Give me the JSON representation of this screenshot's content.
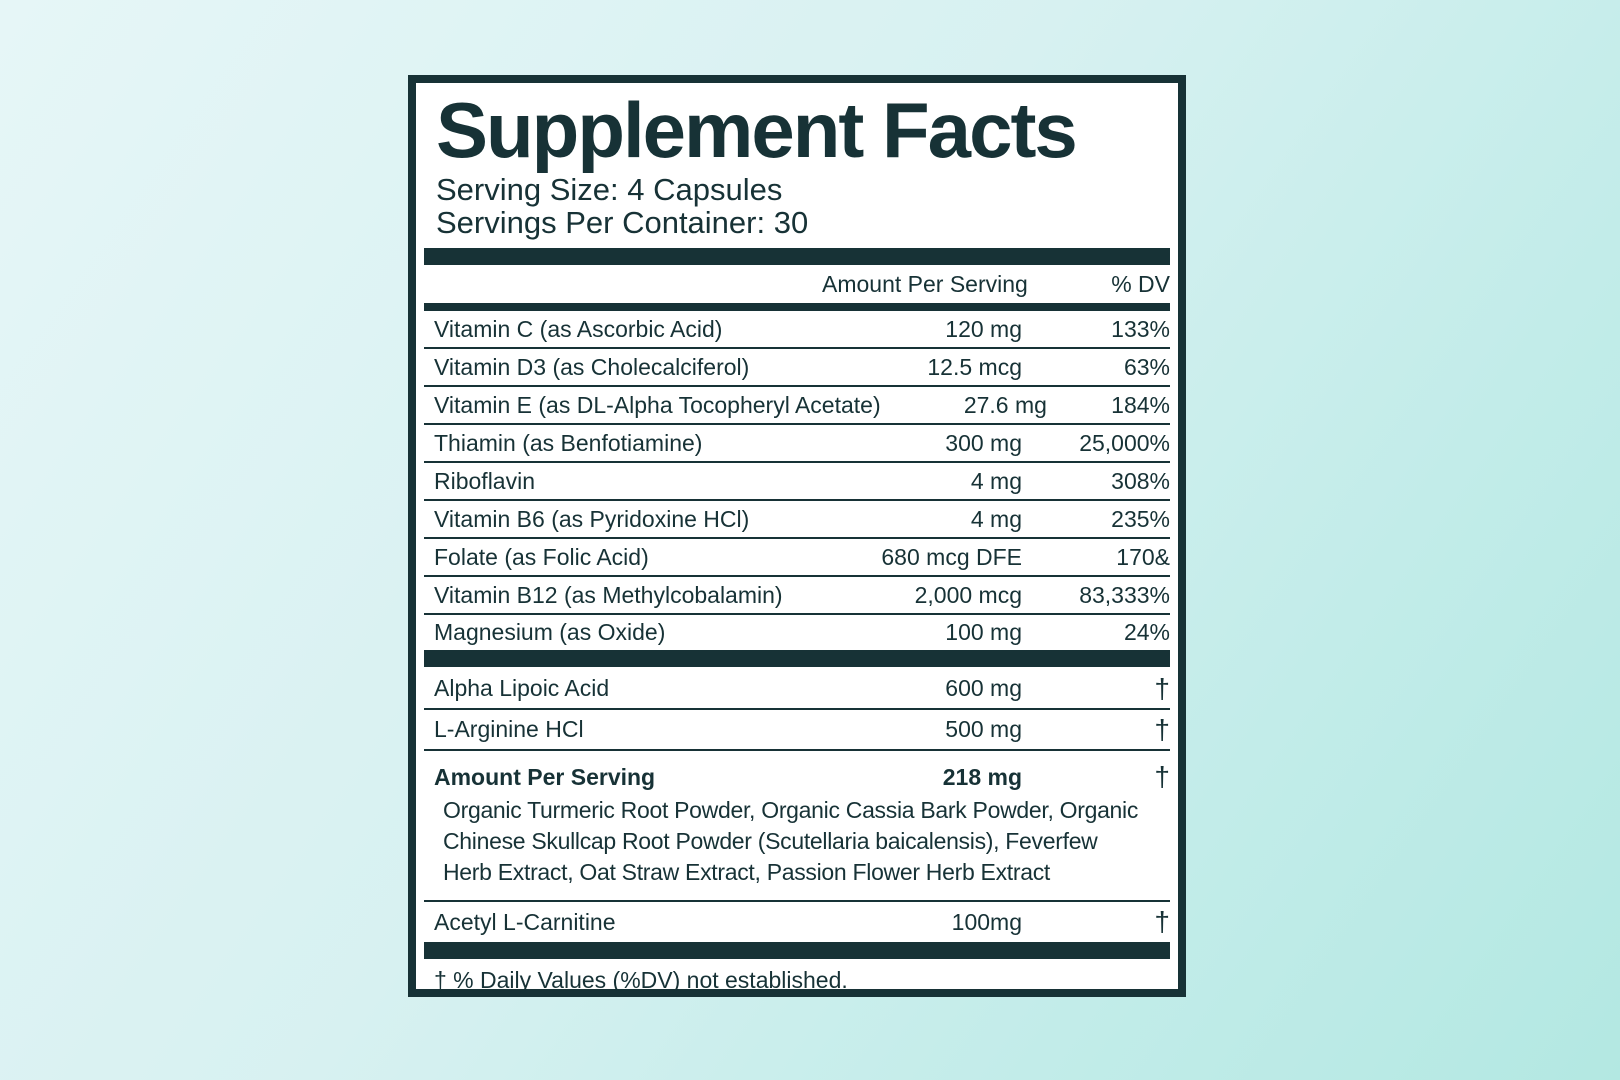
{
  "label": {
    "title": "Supplement Facts",
    "serving_size": "Serving Size: 4 Capsules",
    "servings_per_container": "Servings Per Container: 30",
    "headers": {
      "amount": "Amount Per Serving",
      "dv": "% DV"
    },
    "nutrients": [
      {
        "name": "Vitamin C (as Ascorbic Acid)",
        "amount": "120 mg",
        "dv": "133%"
      },
      {
        "name": "Vitamin D3 (as Cholecalciferol)",
        "amount": "12.5 mcg",
        "dv": "63%"
      },
      {
        "name": "Vitamin E (as DL-Alpha Tocopheryl Acetate)",
        "amount": "27.6 mg",
        "dv": "184%"
      },
      {
        "name": "Thiamin (as Benfotiamine)",
        "amount": "300 mg",
        "dv": "25,000%"
      },
      {
        "name": "Riboflavin",
        "amount": "4 mg",
        "dv": "308%"
      },
      {
        "name": "Vitamin B6 (as Pyridoxine HCl)",
        "amount": "4 mg",
        "dv": "235%"
      },
      {
        "name": "Folate (as Folic Acid)",
        "amount": "680 mcg DFE",
        "dv": "170&"
      },
      {
        "name": "Vitamin B12 (as Methylcobalamin)",
        "amount": "2,000 mcg",
        "dv": "83,333%"
      },
      {
        "name": "Magnesium (as Oxide)",
        "amount": "100 mg",
        "dv": "24%"
      }
    ],
    "other": [
      {
        "name": "Alpha Lipoic Acid",
        "amount": "600 mg",
        "dv": "†"
      },
      {
        "name": "L-Arginine HCl",
        "amount": "500 mg",
        "dv": "†"
      }
    ],
    "blend": {
      "name": "Amount Per Serving",
      "amount": "218 mg",
      "dv": "†",
      "ingredients": "Organic Turmeric Root Powder, Organic Cassia Bark Powder, Organic Chinese Skullcap Root Powder (Scutellaria baicalensis), Feverfew Herb Extract, Oat Straw Extract, Passion Flower Herb Extract"
    },
    "final": {
      "name": "Acetyl L-Carnitine",
      "amount": "100mg",
      "dv": "†"
    },
    "footnote": "† % Daily Values (%DV) not established."
  }
}
